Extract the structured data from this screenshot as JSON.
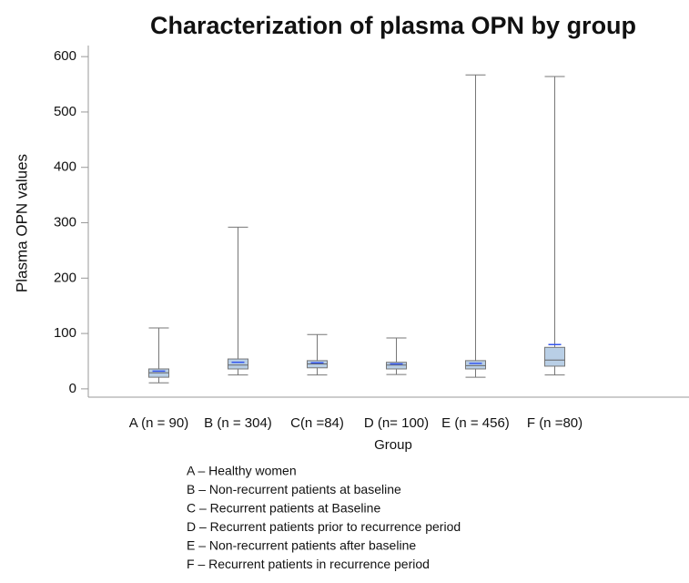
{
  "chart_data": {
    "type": "box",
    "title": "Characterization of plasma OPN by group",
    "xlabel": "Group",
    "ylabel": "Plasma OPN values",
    "categories": [
      "A (n = 90)",
      "B (n = 304)",
      "C(n =84)",
      "D (n= 100)",
      "E (n = 456)",
      "F (n =80)"
    ],
    "whisker_low": [
      11,
      25,
      25,
      26,
      21,
      25
    ],
    "q1": [
      21,
      36,
      38,
      36,
      36,
      41
    ],
    "median": [
      29,
      43,
      45,
      43,
      42,
      52
    ],
    "q3": [
      36,
      54,
      51,
      48,
      51,
      75
    ],
    "whisker_high": [
      110,
      292,
      98,
      92,
      567,
      564
    ],
    "mean": [
      32,
      48,
      47,
      45,
      46,
      80
    ],
    "box_color": "#b9cfe6",
    "mean_color": "#3355ee",
    "ylim": [
      -15,
      620
    ],
    "yticks": [
      0,
      100,
      200,
      300,
      400,
      500,
      600
    ],
    "notes": [
      "A – Healthy women",
      "B – Non-recurrent patients at baseline",
      "C – Recurrent patients at Baseline",
      "D – Recurrent patients prior to recurrence period",
      "E – Non-recurrent patients after baseline",
      "F – Recurrent patients in recurrence period"
    ]
  }
}
